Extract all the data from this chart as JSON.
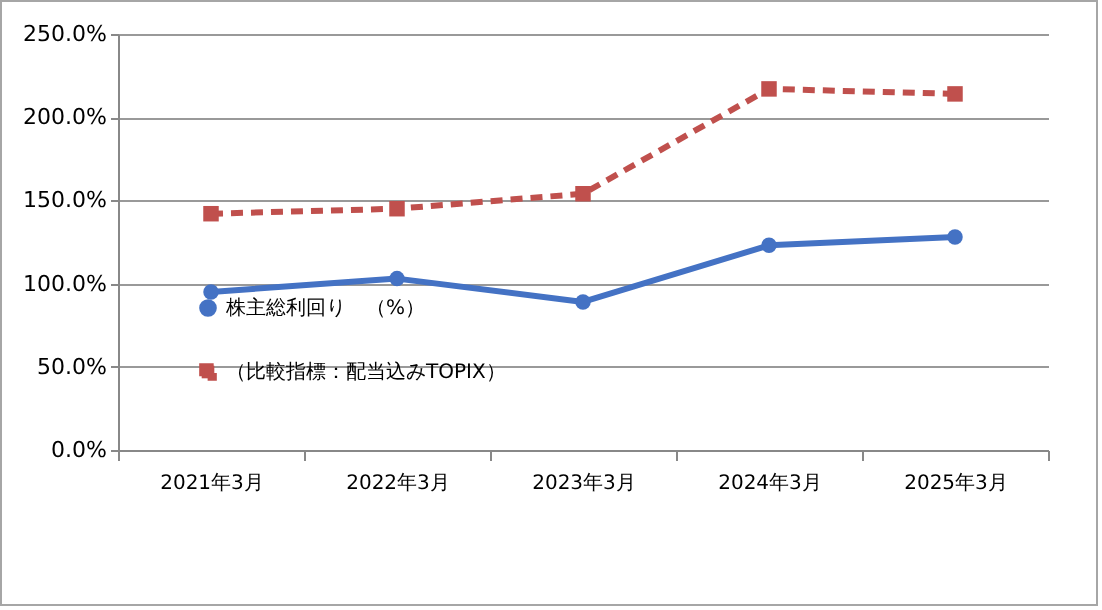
{
  "chart_data": {
    "type": "line",
    "categories": [
      "2021年3月",
      "2022年3月",
      "2023年3月",
      "2024年3月",
      "2025年3月"
    ],
    "series": [
      {
        "name": "株主総利回り　（%）",
        "color": "#4472c4",
        "marker": "circle",
        "line_style": "solid",
        "values": [
          95,
          103,
          89,
          123,
          128
        ]
      },
      {
        "name": "（比較指標：配当込みTOPIX）",
        "color": "#c0504d",
        "marker": "square",
        "line_style": "dashed",
        "values": [
          142,
          145,
          154,
          217,
          214
        ]
      }
    ],
    "ylim": [
      0,
      250
    ],
    "yticks": [
      {
        "value": 0,
        "label": "0.0%"
      },
      {
        "value": 50,
        "label": "50.0%"
      },
      {
        "value": 100,
        "label": "100.0%"
      },
      {
        "value": 150,
        "label": "150.0%"
      },
      {
        "value": 200,
        "label": "200.0%"
      },
      {
        "value": 250,
        "label": "250.0%"
      }
    ],
    "grid": "y",
    "legend": "bottom left"
  }
}
